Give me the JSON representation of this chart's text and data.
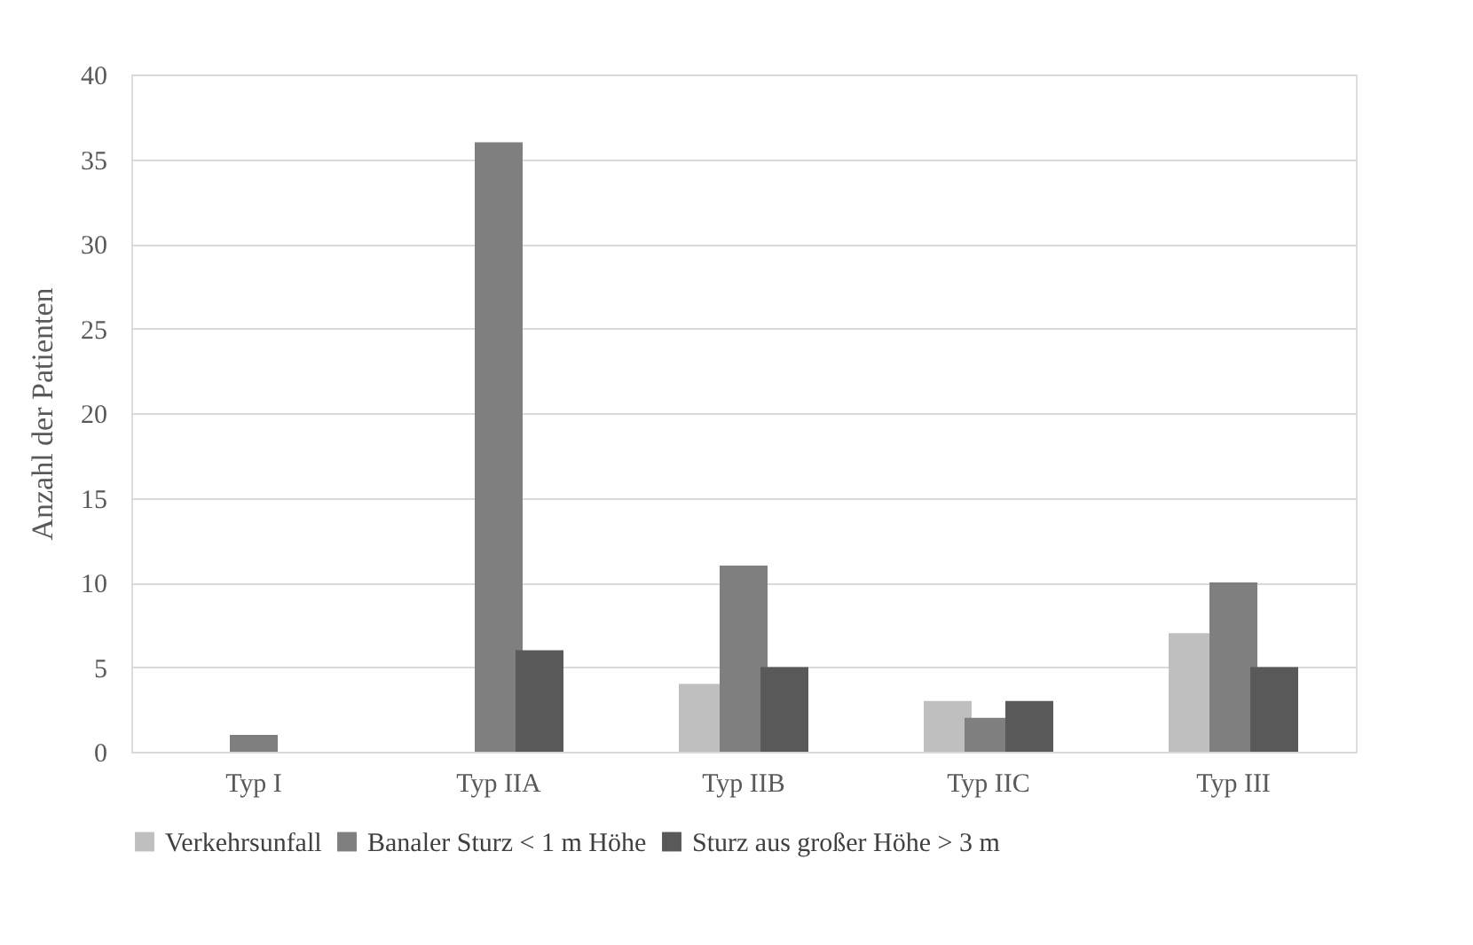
{
  "chart_data": {
    "type": "bar",
    "ylabel": "Anzahl der Patienten",
    "categories": [
      "Typ I",
      "Typ IIA",
      "Typ IIB",
      "Typ IIC",
      "Typ III"
    ],
    "series": [
      {
        "name": "Verkehrsunfall",
        "color": "#bfbfbf",
        "values": [
          0,
          0,
          4,
          3,
          7
        ]
      },
      {
        "name": "Banaler Sturz < 1 m Höhe",
        "color": "#7f7f7f",
        "values": [
          1,
          36,
          11,
          2,
          10
        ]
      },
      {
        "name": "Sturz aus großer Höhe > 3 m",
        "color": "#595959",
        "values": [
          0,
          6,
          5,
          3,
          5
        ]
      }
    ],
    "ylim": [
      0,
      40
    ],
    "yticks": [
      0,
      5,
      10,
      15,
      20,
      25,
      30,
      35,
      40
    ],
    "grid": "y",
    "legend": "bottom"
  }
}
